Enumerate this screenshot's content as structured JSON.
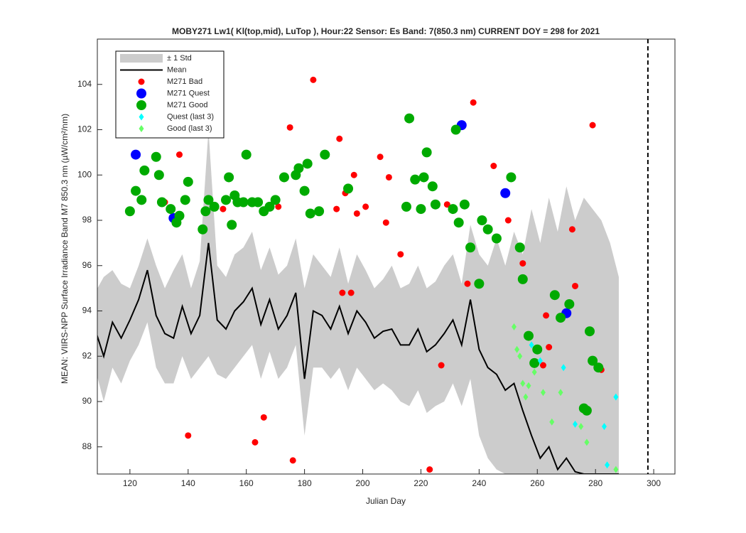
{
  "chart_data": {
    "type": "scatter",
    "title": "MOBY271   Lw1( Kl(top,mid), LuTop ),   Hour:22 Sensor: Es Band: 7(850.3 nm)   CURRENT DOY = 298 for 2021",
    "xlabel": "Julian Day",
    "ylabel": "MEAN: VIIRS-NPP Surface Irradiance Band M7 850.3 nm (µW/cm²/nm)",
    "xlim": [
      108.8,
      307.3
    ],
    "ylim": [
      86.8,
      106
    ],
    "xticks": [
      120,
      140,
      160,
      180,
      200,
      220,
      240,
      260,
      280,
      300
    ],
    "yticks": [
      88,
      90,
      92,
      94,
      96,
      98,
      100,
      102,
      104
    ],
    "current_doy": 298,
    "x": [
      108,
      111,
      114,
      117,
      120,
      123,
      126,
      129,
      132,
      135,
      138,
      141,
      144,
      147,
      150,
      153,
      156,
      159,
      162,
      165,
      168,
      171,
      174,
      177,
      180,
      183,
      186,
      189,
      192,
      195,
      198,
      201,
      204,
      207,
      210,
      213,
      216,
      219,
      222,
      225,
      228,
      231,
      234,
      237,
      240,
      243,
      246,
      249,
      252,
      255,
      258,
      261,
      264,
      267,
      270,
      273,
      276,
      279,
      282,
      285,
      288
    ],
    "series": [
      {
        "name": "± 1 Std",
        "color": "#cccccc",
        "upper": [
          94.8,
          95.5,
          95.8,
          95.2,
          95.0,
          96.0,
          97.2,
          96.0,
          95.0,
          95.8,
          96.5,
          95.0,
          96.2,
          102.0,
          96.0,
          95.5,
          96.5,
          96.8,
          97.5,
          95.8,
          96.8,
          95.6,
          96.0,
          97.2,
          95.0,
          96.5,
          96.0,
          95.5,
          96.8,
          95.2,
          96.5,
          95.8,
          95.0,
          95.4,
          96.0,
          95.0,
          95.2,
          96.0,
          95.0,
          95.3,
          96.0,
          96.5,
          95.2,
          97.8,
          96.5,
          96.0,
          97.2,
          96.0,
          97.5,
          96.5,
          98.5,
          97.0,
          99.0,
          97.5,
          99.5,
          98.0,
          99.0,
          98.5,
          98.0,
          97.0,
          95.5
        ],
        "lower": [
          91.5,
          90.0,
          91.5,
          90.8,
          91.8,
          92.5,
          93.5,
          91.5,
          90.8,
          90.8,
          92.0,
          91.0,
          91.5,
          92.0,
          91.2,
          91.0,
          91.5,
          92.0,
          92.5,
          91.0,
          92.2,
          91.0,
          91.5,
          92.5,
          88.5,
          91.5,
          91.5,
          91.0,
          91.5,
          90.5,
          91.5,
          91.0,
          90.5,
          90.8,
          90.5,
          90.0,
          89.8,
          90.5,
          89.5,
          89.8,
          90.0,
          90.8,
          89.8,
          91.0,
          88.5,
          87.5,
          87.0,
          86.8,
          86.8,
          86.8,
          86.8,
          86.8,
          86.8,
          86.8,
          86.8,
          86.8,
          86.8,
          86.8,
          86.8,
          86.8,
          86.8
        ]
      },
      {
        "name": "Mean",
        "color": "#000000",
        "values": [
          93.2,
          92.0,
          93.5,
          92.8,
          93.6,
          94.5,
          95.8,
          93.8,
          93.0,
          92.8,
          94.2,
          93.0,
          93.8,
          97.0,
          93.6,
          93.2,
          94.0,
          94.4,
          95.0,
          93.4,
          94.5,
          93.2,
          93.8,
          94.8,
          91.0,
          94.0,
          93.8,
          93.2,
          94.2,
          93.0,
          94.0,
          93.5,
          92.8,
          93.1,
          93.2,
          92.5,
          92.5,
          93.2,
          92.2,
          92.5,
          93.0,
          93.6,
          92.5,
          94.5,
          92.3,
          91.5,
          91.2,
          90.5,
          90.8,
          89.6,
          88.5,
          87.5,
          88.0,
          87.0,
          87.5,
          86.9,
          86.8,
          86.8,
          86.8,
          86.8,
          86.8
        ]
      },
      {
        "name": "M271 Bad",
        "color": "#ff0000",
        "x": [
          132,
          137,
          140,
          152,
          163,
          166,
          171,
          175,
          176,
          183,
          191,
          192,
          193,
          194,
          196,
          197,
          198,
          201,
          206,
          208,
          209,
          213,
          223,
          227,
          229,
          236,
          238,
          245,
          250,
          255,
          262,
          263,
          264,
          272,
          273,
          279,
          282
        ],
        "values": [
          98.8,
          100.9,
          88.5,
          98.5,
          88.2,
          89.3,
          98.6,
          102.1,
          87.4,
          104.2,
          98.5,
          101.6,
          94.8,
          99.2,
          94.8,
          100,
          98.3,
          98.6,
          100.8,
          97.9,
          99.9,
          96.5,
          87,
          91.6,
          98.7,
          95.2,
          103.2,
          100.4,
          98,
          96.1,
          91.6,
          93.8,
          92.4,
          97.6,
          95.1,
          102.2,
          91.4
        ]
      },
      {
        "name": "M271 Quest",
        "color": "#0000ff",
        "x": [
          122,
          135,
          234,
          249,
          270
        ],
        "values": [
          100.9,
          98.1,
          102.2,
          99.2,
          93.9
        ]
      },
      {
        "name": "M271 Good",
        "color": "#00aa00",
        "x": [
          120,
          122,
          124,
          125,
          129,
          130,
          131,
          134,
          136,
          137,
          139,
          140,
          145,
          146,
          147,
          149,
          153,
          154,
          155,
          156,
          157,
          159,
          160,
          162,
          164,
          166,
          168,
          170,
          173,
          177,
          178,
          180,
          181,
          182,
          185,
          187,
          195,
          215,
          216,
          218,
          220,
          221,
          222,
          224,
          225,
          231,
          232,
          233,
          235,
          237,
          240,
          241,
          243,
          246,
          251,
          254,
          255,
          257,
          259,
          260,
          266,
          268,
          271,
          276,
          277,
          278,
          279,
          281
        ],
        "values": [
          98.4,
          99.3,
          98.9,
          100.2,
          100.8,
          100,
          98.8,
          98.5,
          97.9,
          98.2,
          98.9,
          99.7,
          97.6,
          98.4,
          98.9,
          98.6,
          98.9,
          99.9,
          97.8,
          99.1,
          98.8,
          98.8,
          100.9,
          98.8,
          98.8,
          98.4,
          98.6,
          98.9,
          99.9,
          100,
          100.3,
          99.3,
          100.5,
          98.3,
          98.4,
          100.9,
          99.4,
          98.6,
          102.5,
          99.8,
          98.5,
          99.9,
          101,
          99.5,
          98.7,
          98.5,
          102,
          97.9,
          98.7,
          96.8,
          95.2,
          98,
          97.6,
          97.2,
          99.9,
          96.8,
          95.4,
          92.9,
          91.7,
          92.3,
          94.7,
          93.7,
          94.3,
          89.7,
          89.6,
          93.1,
          91.8,
          91.5
        ]
      },
      {
        "name": "Quest (last 3)",
        "color": "#00ffff",
        "x": [
          258,
          261,
          269,
          273,
          283,
          284,
          287
        ],
        "values": [
          92.5,
          91.8,
          91.5,
          89.0,
          88.9,
          87.2,
          90.2
        ]
      },
      {
        "name": "Good (last 3)",
        "color": "#66ff66",
        "x": [
          252,
          253,
          254,
          255,
          256,
          257,
          259,
          262,
          265,
          268,
          275,
          277,
          287
        ],
        "values": [
          93.3,
          92.3,
          92.0,
          90.8,
          90.2,
          90.7,
          91.3,
          90.4,
          89.1,
          90.4,
          88.9,
          88.2,
          87.0
        ]
      }
    ]
  }
}
